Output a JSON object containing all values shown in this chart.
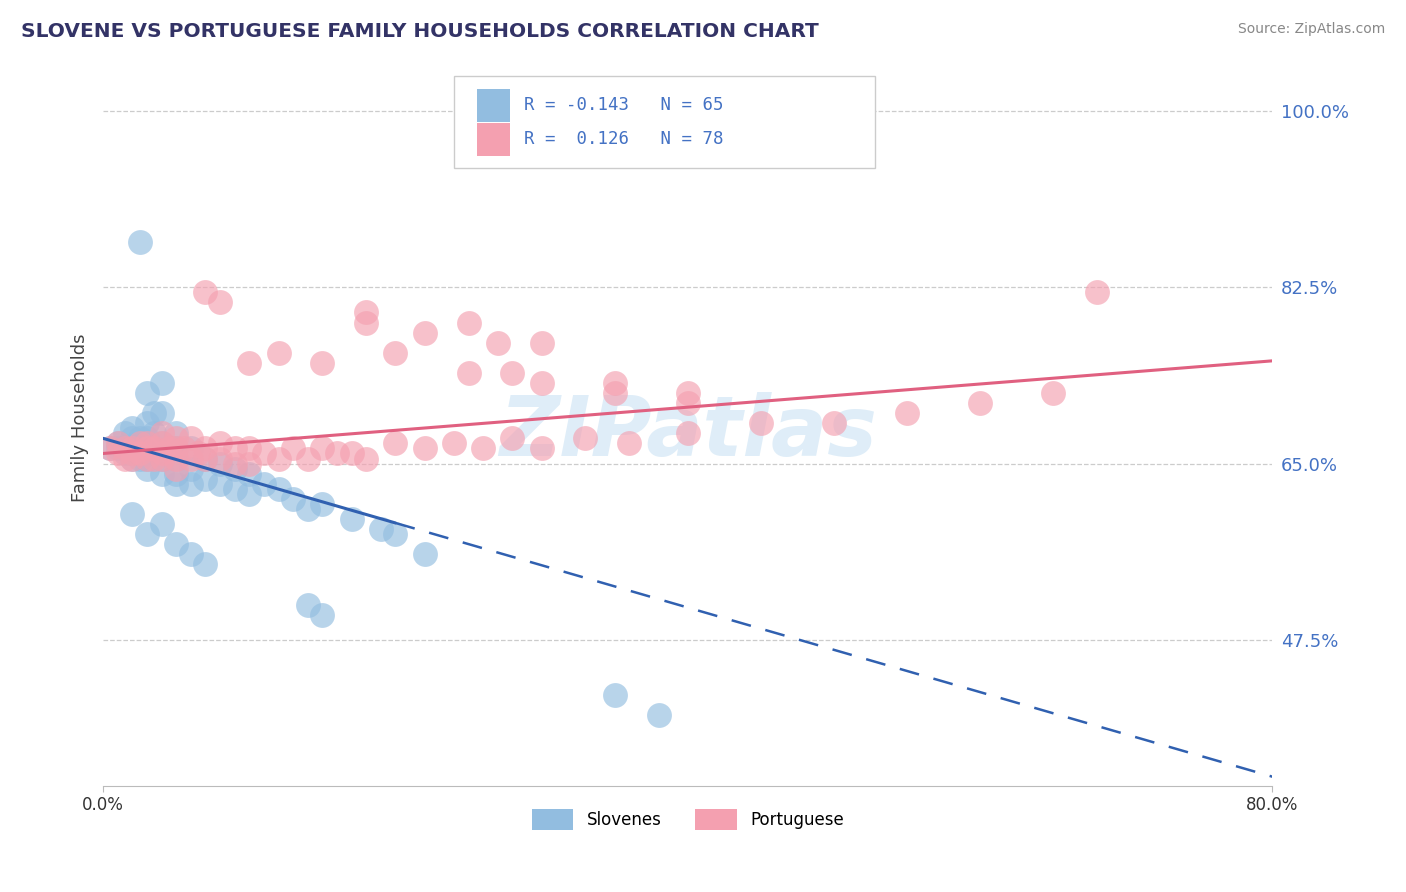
{
  "title": "SLOVENE VS PORTUGUESE FAMILY HOUSEHOLDS CORRELATION CHART",
  "source": "Source: ZipAtlas.com",
  "ylabel": "Family Households",
  "ytick_values": [
    0.475,
    0.65,
    0.825,
    1.0
  ],
  "ytick_labels": [
    "47.5%",
    "65.0%",
    "82.5%",
    "100.0%"
  ],
  "xmin": 0.0,
  "xmax": 0.8,
  "ymin": 0.33,
  "ymax": 1.06,
  "slovene_color": "#92bde0",
  "portuguese_color": "#f4a0b0",
  "slovene_line_color": "#3060b0",
  "portuguese_line_color": "#e06080",
  "legend_label_slovene": "Slovenes",
  "legend_label_portuguese": "Portuguese",
  "slovene_R": -0.143,
  "slovene_N": 65,
  "portuguese_R": 0.126,
  "portuguese_N": 78,
  "slovene_x": [
    0.005,
    0.01,
    0.01,
    0.015,
    0.015,
    0.015,
    0.02,
    0.02,
    0.02,
    0.02,
    0.02,
    0.025,
    0.025,
    0.025,
    0.025,
    0.03,
    0.03,
    0.03,
    0.03,
    0.03,
    0.03,
    0.035,
    0.035,
    0.035,
    0.04,
    0.04,
    0.04,
    0.04,
    0.05,
    0.05,
    0.05,
    0.05,
    0.05,
    0.06,
    0.06,
    0.06,
    0.07,
    0.07,
    0.08,
    0.08,
    0.09,
    0.09,
    0.1,
    0.1,
    0.11,
    0.12,
    0.13,
    0.14,
    0.15,
    0.17,
    0.19,
    0.2,
    0.22,
    0.025,
    0.04,
    0.14,
    0.15,
    0.35,
    0.38,
    0.02,
    0.03,
    0.05,
    0.06,
    0.07,
    0.04
  ],
  "slovene_y": [
    0.665,
    0.67,
    0.665,
    0.68,
    0.665,
    0.66,
    0.685,
    0.675,
    0.665,
    0.655,
    0.66,
    0.675,
    0.665,
    0.66,
    0.655,
    0.72,
    0.69,
    0.675,
    0.665,
    0.655,
    0.645,
    0.7,
    0.68,
    0.66,
    0.7,
    0.67,
    0.655,
    0.64,
    0.68,
    0.665,
    0.655,
    0.64,
    0.63,
    0.665,
    0.645,
    0.63,
    0.655,
    0.635,
    0.65,
    0.63,
    0.645,
    0.625,
    0.64,
    0.62,
    0.63,
    0.625,
    0.615,
    0.605,
    0.61,
    0.595,
    0.585,
    0.58,
    0.56,
    0.87,
    0.73,
    0.51,
    0.5,
    0.42,
    0.4,
    0.6,
    0.58,
    0.57,
    0.56,
    0.55,
    0.59
  ],
  "portuguese_x": [
    0.005,
    0.01,
    0.01,
    0.015,
    0.015,
    0.02,
    0.02,
    0.02,
    0.025,
    0.025,
    0.03,
    0.03,
    0.03,
    0.035,
    0.035,
    0.04,
    0.04,
    0.04,
    0.04,
    0.045,
    0.05,
    0.05,
    0.05,
    0.05,
    0.055,
    0.06,
    0.06,
    0.065,
    0.07,
    0.07,
    0.08,
    0.08,
    0.09,
    0.09,
    0.1,
    0.1,
    0.11,
    0.12,
    0.13,
    0.14,
    0.15,
    0.16,
    0.17,
    0.18,
    0.2,
    0.22,
    0.24,
    0.26,
    0.28,
    0.3,
    0.33,
    0.36,
    0.4,
    0.45,
    0.28,
    0.3,
    0.2,
    0.25,
    0.35,
    0.4,
    0.1,
    0.12,
    0.15,
    0.07,
    0.08,
    0.18,
    0.22,
    0.27,
    0.5,
    0.55,
    0.6,
    0.65,
    0.68,
    0.35,
    0.4,
    0.18,
    0.25,
    0.3
  ],
  "portuguese_y": [
    0.665,
    0.67,
    0.66,
    0.665,
    0.655,
    0.665,
    0.66,
    0.655,
    0.67,
    0.66,
    0.67,
    0.665,
    0.655,
    0.665,
    0.655,
    0.68,
    0.67,
    0.66,
    0.655,
    0.665,
    0.675,
    0.665,
    0.655,
    0.645,
    0.665,
    0.675,
    0.655,
    0.66,
    0.665,
    0.655,
    0.67,
    0.655,
    0.665,
    0.65,
    0.665,
    0.65,
    0.66,
    0.655,
    0.665,
    0.655,
    0.665,
    0.66,
    0.66,
    0.655,
    0.67,
    0.665,
    0.67,
    0.665,
    0.675,
    0.665,
    0.675,
    0.67,
    0.68,
    0.69,
    0.74,
    0.73,
    0.76,
    0.74,
    0.73,
    0.72,
    0.75,
    0.76,
    0.75,
    0.82,
    0.81,
    0.79,
    0.78,
    0.77,
    0.69,
    0.7,
    0.71,
    0.72,
    0.82,
    0.72,
    0.71,
    0.8,
    0.79,
    0.77
  ]
}
